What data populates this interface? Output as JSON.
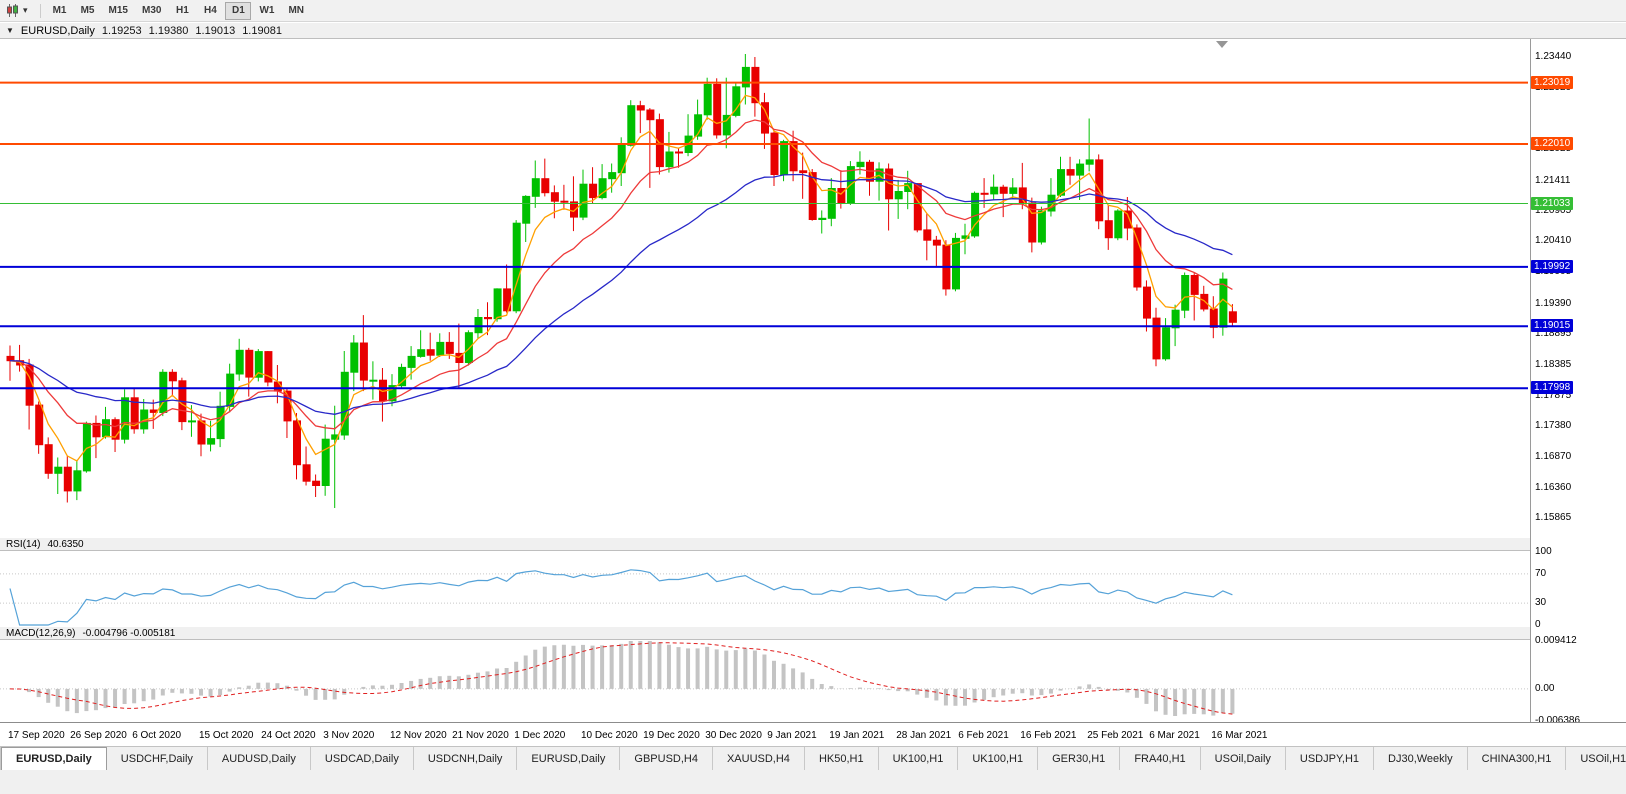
{
  "toolbar": {
    "chart_type_icon": "candlestick-chart",
    "timeframes": [
      "M1",
      "M5",
      "M15",
      "M30",
      "H1",
      "H4",
      "D1",
      "W1",
      "MN"
    ],
    "active_timeframe": "D1"
  },
  "chart_header": {
    "collapse_icon": "▼",
    "symbol": "EURUSD,Daily",
    "open": "1.19253",
    "high": "1.19380",
    "low": "1.19013",
    "close": "1.19081"
  },
  "tabs": {
    "active_index": 0,
    "items": [
      "EURUSD,Daily",
      "USDCHF,Daily",
      "AUDUSD,Daily",
      "USDCAD,Daily",
      "USDCNH,Daily",
      "EURUSD,Daily",
      "GBPUSD,H4",
      "XAUUSD,H4",
      "HK50,H1",
      "UK100,H1",
      "UK100,H1",
      "GER30,H1",
      "FRA40,H1",
      "USOil,Daily",
      "USDJPY,H1",
      "DJ30,Weekly",
      "CHINA300,H1",
      "USOil,H1"
    ]
  },
  "chart_data": {
    "type": "candlestick",
    "symbol": "EURUSD",
    "timeframe": "Daily",
    "colors": {
      "bull": "#00C000",
      "bear": "#E80000"
    },
    "price_axis": {
      "max": 1.23736,
      "min": 1.15553,
      "ticks": [
        "1.23440",
        "1.22929",
        "1.21925",
        "1.21411",
        "1.20905",
        "1.20410",
        "1.19905",
        "1.19390",
        "1.18895",
        "1.18385",
        "1.17875",
        "1.17380",
        "1.16870",
        "1.16360",
        "1.15865"
      ]
    },
    "hlines": [
      {
        "price": 1.23019,
        "color": "#FF4A00",
        "width": 2,
        "label": "1.23019"
      },
      {
        "price": 1.2201,
        "color": "#FF4A00",
        "width": 2,
        "label": "1.22010"
      },
      {
        "price": 1.21033,
        "color": "#35BE35",
        "width": 1,
        "label": "1.21033"
      },
      {
        "price": 1.19992,
        "color": "#0000D8",
        "width": 2,
        "label": "1.19992"
      },
      {
        "price": 1.19015,
        "color": "#0000D8",
        "width": 2,
        "label": "1.19015"
      },
      {
        "price": 1.17998,
        "color": "#0000D8",
        "width": 2,
        "label": "1.17998"
      }
    ],
    "moving_averages": [
      {
        "type": "ema",
        "period": 5,
        "color": "#FFA000"
      },
      {
        "type": "ema",
        "period": 13,
        "color": "#EE3A3A"
      },
      {
        "type": "ema",
        "period": 32,
        "color": "#2828C8"
      }
    ],
    "rsi": {
      "label": "RSI(14)",
      "value": "40.6350",
      "period": 14,
      "color": "#55A2D8",
      "levels": [
        70,
        30
      ],
      "range": [
        0,
        100
      ],
      "axis": [
        {
          "text": "100",
          "value": 100
        },
        {
          "text": "70",
          "value": 70
        },
        {
          "text": "30",
          "value": 30
        },
        {
          "text": "0",
          "value": 0
        }
      ]
    },
    "macd": {
      "label": "MACD(12,26,9)",
      "value": "-0.004796 -0.005181",
      "fast": 12,
      "slow": 26,
      "signal": 9,
      "hist_color": "#C4C4C4",
      "signal_color": "#E02020",
      "range": [
        -0.006386,
        0.009412
      ],
      "axis": [
        {
          "text": "0.009412",
          "value": 0.009412
        },
        {
          "text": "0.00",
          "value": 0
        },
        {
          "text": "-0.006386",
          "value": -0.006386
        }
      ]
    },
    "x_axis": {
      "labels": [
        {
          "text": "17 Sep 2020",
          "index": 0
        },
        {
          "text": "26 Sep 2020",
          "index": 6.5
        },
        {
          "text": "6 Oct 2020",
          "index": 13
        },
        {
          "text": "15 Oct 2020",
          "index": 20
        },
        {
          "text": "24 Oct 2020",
          "index": 26.5
        },
        {
          "text": "3 Nov 2020",
          "index": 33
        },
        {
          "text": "12 Nov 2020",
          "index": 40
        },
        {
          "text": "21 Nov 2020",
          "index": 46.5
        },
        {
          "text": "1 Dec 2020",
          "index": 53
        },
        {
          "text": "10 Dec 2020",
          "index": 60
        },
        {
          "text": "19 Dec 2020",
          "index": 66.5
        },
        {
          "text": "30 Dec 2020",
          "index": 73
        },
        {
          "text": "9 Jan 2021",
          "index": 79.5
        },
        {
          "text": "19 Jan 2021",
          "index": 86
        },
        {
          "text": "28 Jan 2021",
          "index": 93
        },
        {
          "text": "6 Feb 2021",
          "index": 99.5
        },
        {
          "text": "16 Feb 2021",
          "index": 106
        },
        {
          "text": "25 Feb 2021",
          "index": 113
        },
        {
          "text": "6 Mar 2021",
          "index": 119.5
        },
        {
          "text": "16 Mar 2021",
          "index": 126
        }
      ]
    },
    "candles": [
      [
        1.1852,
        1.187,
        1.1812,
        1.1845
      ],
      [
        1.1845,
        1.1871,
        1.1827,
        1.1838
      ],
      [
        1.1838,
        1.1848,
        1.1732,
        1.1772
      ],
      [
        1.1772,
        1.1778,
        1.1692,
        1.1707
      ],
      [
        1.1707,
        1.1719,
        1.1651,
        1.166
      ],
      [
        1.166,
        1.1686,
        1.1626,
        1.167
      ],
      [
        1.167,
        1.1688,
        1.1612,
        1.1631
      ],
      [
        1.1631,
        1.1682,
        1.1616,
        1.1664
      ],
      [
        1.1664,
        1.1745,
        1.1661,
        1.1742
      ],
      [
        1.1742,
        1.1755,
        1.1685,
        1.172
      ],
      [
        1.172,
        1.1769,
        1.1717,
        1.1748
      ],
      [
        1.1748,
        1.1752,
        1.1695,
        1.1716
      ],
      [
        1.1716,
        1.1798,
        1.1709,
        1.1784
      ],
      [
        1.1784,
        1.1799,
        1.1725,
        1.1733
      ],
      [
        1.1733,
        1.1782,
        1.1725,
        1.1764
      ],
      [
        1.1764,
        1.1781,
        1.1733,
        1.176
      ],
      [
        1.176,
        1.1831,
        1.1754,
        1.1826
      ],
      [
        1.1826,
        1.1831,
        1.1786,
        1.1812
      ],
      [
        1.1812,
        1.1817,
        1.1731,
        1.1745
      ],
      [
        1.1745,
        1.1772,
        1.172,
        1.1746
      ],
      [
        1.1746,
        1.1758,
        1.1688,
        1.1708
      ],
      [
        1.1708,
        1.1746,
        1.1696,
        1.1717
      ],
      [
        1.1717,
        1.1794,
        1.1703,
        1.177
      ],
      [
        1.177,
        1.184,
        1.176,
        1.1823
      ],
      [
        1.1823,
        1.1881,
        1.1812,
        1.1862
      ],
      [
        1.1862,
        1.1866,
        1.1786,
        1.1818
      ],
      [
        1.1818,
        1.1864,
        1.1811,
        1.186
      ],
      [
        1.186,
        1.1861,
        1.1803,
        1.181
      ],
      [
        1.181,
        1.1838,
        1.1775,
        1.1795
      ],
      [
        1.1795,
        1.18,
        1.1718,
        1.1746
      ],
      [
        1.1746,
        1.1759,
        1.165,
        1.1674
      ],
      [
        1.1674,
        1.1704,
        1.164,
        1.1647
      ],
      [
        1.1647,
        1.1658,
        1.1621,
        1.164
      ],
      [
        1.164,
        1.174,
        1.1623,
        1.1716
      ],
      [
        1.1716,
        1.1771,
        1.1603,
        1.1723
      ],
      [
        1.1723,
        1.1861,
        1.1715,
        1.1826
      ],
      [
        1.1826,
        1.1887,
        1.1795,
        1.1874
      ],
      [
        1.1874,
        1.192,
        1.1795,
        1.1813
      ],
      [
        1.1813,
        1.1844,
        1.1781,
        1.1813
      ],
      [
        1.1813,
        1.1833,
        1.1745,
        1.1779
      ],
      [
        1.1779,
        1.1823,
        1.177,
        1.1804
      ],
      [
        1.1804,
        1.184,
        1.1799,
        1.1834
      ],
      [
        1.1834,
        1.1869,
        1.1814,
        1.1852
      ],
      [
        1.1852,
        1.1895,
        1.185,
        1.1863
      ],
      [
        1.1863,
        1.1891,
        1.1845,
        1.1854
      ],
      [
        1.1854,
        1.189,
        1.1851,
        1.1875
      ],
      [
        1.1875,
        1.1892,
        1.1848,
        1.1857
      ],
      [
        1.1857,
        1.1906,
        1.18,
        1.1842
      ],
      [
        1.1842,
        1.1895,
        1.1837,
        1.1891
      ],
      [
        1.1891,
        1.193,
        1.1881,
        1.1916
      ],
      [
        1.1916,
        1.1941,
        1.1887,
        1.1914
      ],
      [
        1.1914,
        1.1964,
        1.1909,
        1.1963
      ],
      [
        1.1963,
        1.2003,
        1.1924,
        1.1927
      ],
      [
        1.1927,
        1.2076,
        1.1923,
        1.2071
      ],
      [
        1.2071,
        1.2117,
        1.204,
        1.2115
      ],
      [
        1.2115,
        1.2174,
        1.2096,
        1.2144
      ],
      [
        1.2144,
        1.2177,
        1.2115,
        1.2121
      ],
      [
        1.2121,
        1.2133,
        1.2079,
        1.2107
      ],
      [
        1.2107,
        1.2134,
        1.2093,
        1.2106
      ],
      [
        1.2106,
        1.2148,
        1.2058,
        1.2081
      ],
      [
        1.2081,
        1.2159,
        1.2076,
        1.2135
      ],
      [
        1.2135,
        1.2163,
        1.2103,
        1.2113
      ],
      [
        1.2113,
        1.2168,
        1.211,
        1.2144
      ],
      [
        1.2144,
        1.2169,
        1.2121,
        1.2154
      ],
      [
        1.2154,
        1.2212,
        1.2132,
        1.2199
      ],
      [
        1.2199,
        1.2273,
        1.2197,
        1.2264
      ],
      [
        1.2264,
        1.2272,
        1.2219,
        1.2257
      ],
      [
        1.2257,
        1.226,
        1.2129,
        1.2241
      ],
      [
        1.2241,
        1.2251,
        1.2151,
        1.2164
      ],
      [
        1.2164,
        1.2221,
        1.2154,
        1.2188
      ],
      [
        1.2188,
        1.2194,
        1.2162,
        1.2187
      ],
      [
        1.2187,
        1.225,
        1.2181,
        1.2214
      ],
      [
        1.2214,
        1.2274,
        1.2208,
        1.2249
      ],
      [
        1.2249,
        1.231,
        1.2241,
        1.2299
      ],
      [
        1.2299,
        1.2309,
        1.221,
        1.2216
      ],
      [
        1.2216,
        1.231,
        1.2194,
        1.2248
      ],
      [
        1.2248,
        1.2303,
        1.2245,
        1.2295
      ],
      [
        1.2295,
        1.2349,
        1.2266,
        1.2327
      ],
      [
        1.2327,
        1.2344,
        1.2246,
        1.2269
      ],
      [
        1.2269,
        1.2285,
        1.2193,
        1.2219
      ],
      [
        1.2219,
        1.2224,
        1.2132,
        1.2151
      ],
      [
        1.2151,
        1.2208,
        1.214,
        1.2205
      ],
      [
        1.2205,
        1.2223,
        1.214,
        1.2157
      ],
      [
        1.2157,
        1.2187,
        1.2111,
        1.2154
      ],
      [
        1.2154,
        1.216,
        1.2075,
        1.2077
      ],
      [
        1.2077,
        1.2092,
        1.2054,
        1.2079
      ],
      [
        1.2079,
        1.2145,
        1.2066,
        1.2128
      ],
      [
        1.2128,
        1.2158,
        1.2095,
        1.2105
      ],
      [
        1.2105,
        1.2173,
        1.2101,
        1.2164
      ],
      [
        1.2164,
        1.2189,
        1.2151,
        1.2171
      ],
      [
        1.2171,
        1.2175,
        1.2116,
        1.214
      ],
      [
        1.214,
        1.2171,
        1.2108,
        1.216
      ],
      [
        1.216,
        1.2169,
        1.2059,
        1.2111
      ],
      [
        1.2111,
        1.2142,
        1.2078,
        1.2123
      ],
      [
        1.2123,
        1.2157,
        1.2094,
        1.2136
      ],
      [
        1.2136,
        1.2137,
        1.2056,
        1.206
      ],
      [
        1.206,
        1.2087,
        1.201,
        1.2043
      ],
      [
        1.2043,
        1.205,
        1.1999,
        1.2035
      ],
      [
        1.2035,
        1.2043,
        1.1952,
        1.1963
      ],
      [
        1.1963,
        1.2055,
        1.1959,
        1.2046
      ],
      [
        1.2046,
        1.207,
        1.202,
        1.205
      ],
      [
        1.205,
        1.2123,
        1.2047,
        1.212
      ],
      [
        1.212,
        1.2145,
        1.2096,
        1.2119
      ],
      [
        1.2119,
        1.2151,
        1.2109,
        1.213
      ],
      [
        1.213,
        1.2134,
        1.2081,
        1.212
      ],
      [
        1.212,
        1.2145,
        1.211,
        1.2129
      ],
      [
        1.2129,
        1.217,
        1.2094,
        1.2104
      ],
      [
        1.2104,
        1.2113,
        1.2023,
        1.204
      ],
      [
        1.204,
        1.2098,
        1.2036,
        1.2091
      ],
      [
        1.2091,
        1.2145,
        1.2082,
        1.2117
      ],
      [
        1.2117,
        1.218,
        1.2114,
        1.2159
      ],
      [
        1.2159,
        1.218,
        1.2134,
        1.215
      ],
      [
        1.215,
        1.2176,
        1.2109,
        1.2168
      ],
      [
        1.2168,
        1.2243,
        1.2156,
        1.2175
      ],
      [
        1.2175,
        1.2184,
        1.2061,
        1.2075
      ],
      [
        1.2075,
        1.2101,
        1.2027,
        1.2047
      ],
      [
        1.2047,
        1.2094,
        1.2043,
        1.2091
      ],
      [
        1.2091,
        1.2114,
        1.2043,
        1.2063
      ],
      [
        1.2063,
        1.2069,
        1.196,
        1.1966
      ],
      [
        1.1966,
        1.1977,
        1.1893,
        1.1915
      ],
      [
        1.1915,
        1.1932,
        1.1836,
        1.1848
      ],
      [
        1.1848,
        1.1915,
        1.1845,
        1.1899
      ],
      [
        1.1899,
        1.1937,
        1.1869,
        1.1928
      ],
      [
        1.1928,
        1.199,
        1.1915,
        1.1985
      ],
      [
        1.1985,
        1.1989,
        1.1911,
        1.1954
      ],
      [
        1.1954,
        1.1968,
        1.1926,
        1.193
      ],
      [
        1.193,
        1.1951,
        1.1882,
        1.19
      ],
      [
        1.19,
        1.199,
        1.1886,
        1.1979
      ],
      [
        1.19253,
        1.1938,
        1.19013,
        1.19081
      ]
    ]
  }
}
